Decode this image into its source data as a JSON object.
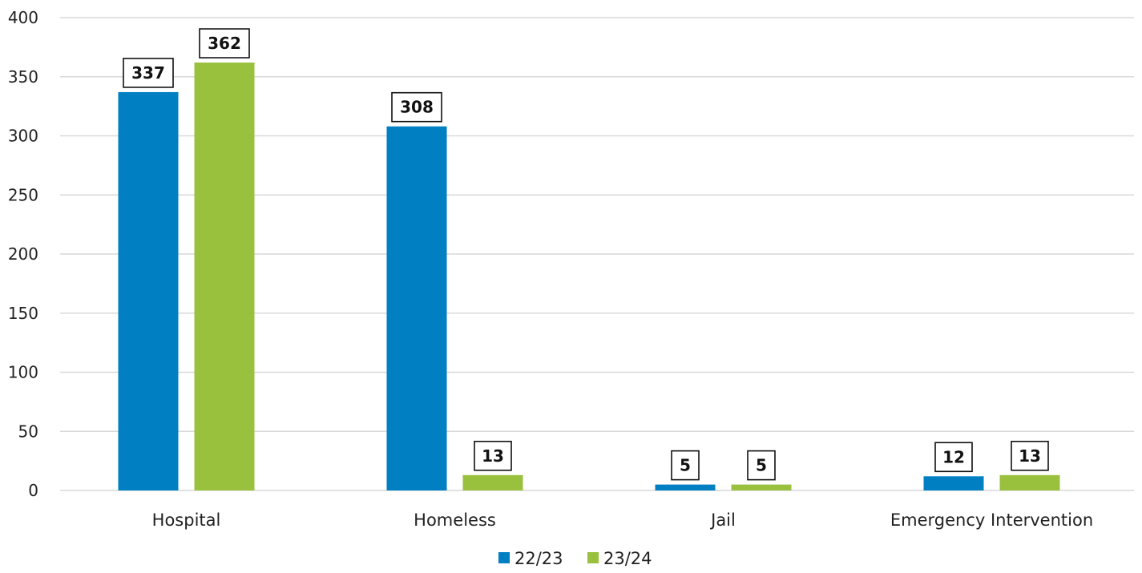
{
  "chart_data": {
    "type": "bar",
    "categories": [
      "Hospital",
      "Homeless",
      "Jail",
      "Emergency Intervention"
    ],
    "series": [
      {
        "name": "22/23",
        "values": [
          337,
          308,
          5,
          12
        ],
        "color": "#0080c3"
      },
      {
        "name": "23/24",
        "values": [
          362,
          13,
          5,
          13
        ],
        "color": "#99c13d"
      }
    ],
    "ylim": [
      0,
      400
    ],
    "yticks": [
      0,
      50,
      100,
      150,
      200,
      250,
      300,
      350,
      400
    ],
    "grid": true,
    "legend_position": "bottom-center",
    "data_labels": true
  }
}
